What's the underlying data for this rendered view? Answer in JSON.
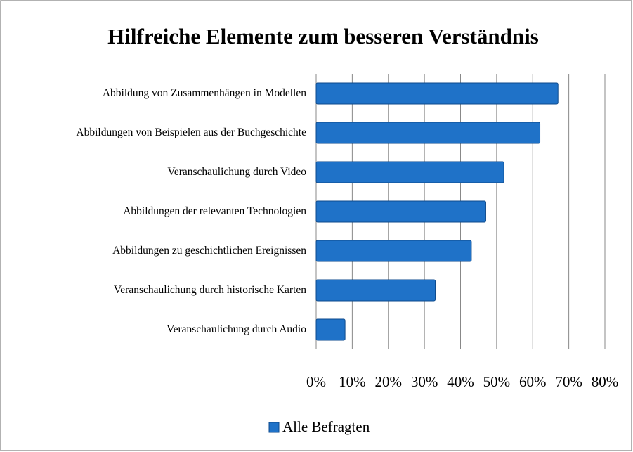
{
  "chart_data": {
    "type": "bar",
    "orientation": "horizontal",
    "title": "Hilfreiche Elemente zum besseren Verständnis",
    "categories": [
      "Abbildung von Zusammenhängen in Modellen",
      "Abbildungen von Beispielen aus der Buchgeschichte",
      "Veranschaulichung durch Video",
      "Abbildungen der relevanten Technologien",
      "Abbildungen zu geschichtlichen Ereignissen",
      "Veranschaulichung durch historische Karten",
      "Veranschaulichung durch Audio"
    ],
    "series": [
      {
        "name": "Alle Befragten",
        "color": "#1f72c8",
        "values": [
          67,
          62,
          52,
          47,
          43,
          33,
          8
        ]
      }
    ],
    "xlim": [
      0,
      80
    ],
    "xticks": [
      {
        "value": 0,
        "label": "0%"
      },
      {
        "value": 10,
        "label": "10%"
      },
      {
        "value": 20,
        "label": "20%"
      },
      {
        "value": 30,
        "label": "30%"
      },
      {
        "value": 40,
        "label": "40%"
      },
      {
        "value": 50,
        "label": "50%"
      },
      {
        "value": 60,
        "label": "60%"
      },
      {
        "value": 70,
        "label": "70%"
      },
      {
        "value": 80,
        "label": "80%"
      }
    ],
    "grid": true,
    "legend": "bottom"
  }
}
